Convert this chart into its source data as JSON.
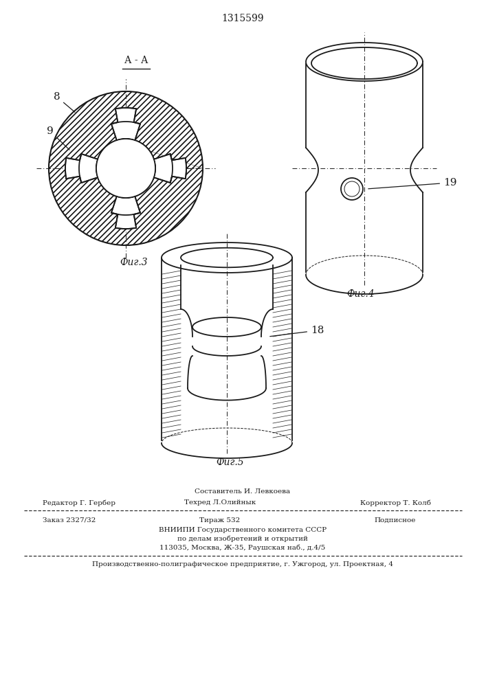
{
  "title": "1315599",
  "fig3_label": "Фиг.3",
  "fig4_label": "Фиг.4",
  "fig5_label": "Фиг.5",
  "section_label": "А - А",
  "label_8": "8",
  "label_9": "9",
  "label_18": "18",
  "label_19": "19",
  "line_color": "#1a1a1a",
  "footer_line0": "Составитель И. Левкоева",
  "footer_line1_left": "Редактор Г. Гербер",
  "footer_line1_center": "Техред Л.Олийнык",
  "footer_line1_right": "Корректор Т. Колб",
  "footer_line2_left": "Заказ 2327/32",
  "footer_line2_center": "Тираж 532",
  "footer_line2_right": "Подписное",
  "footer_line3": "ВНИИПИ Государственного комитета СССР",
  "footer_line4": "по делам изобретений и открытий",
  "footer_line5": "113035, Москва, Ж-35, Раушская наб., д.4/5",
  "footer_line6": "Производственно-полиграфическое предприятие, г. Ужгород, ул. Проектная, 4"
}
